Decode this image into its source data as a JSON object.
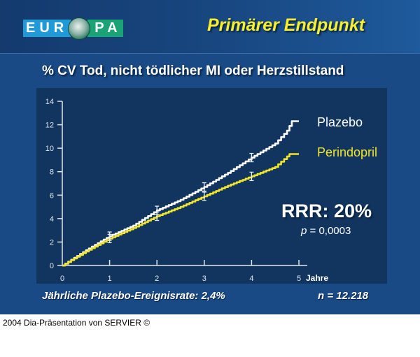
{
  "header": {
    "logo": {
      "text_left": "EUR",
      "text_right": "PA",
      "icon": "globe-heart-icon",
      "color_left": "#1f9ad6",
      "color_right": "#1aa374"
    },
    "title": "Primärer Endpunkt"
  },
  "subtitle": "% CV Tod, nicht tödlicher MI oder Herzstillstand",
  "annotation": {
    "rrr": "RRR: 20%",
    "p_label": "p",
    "p_value": " = 0,0003"
  },
  "bottom": {
    "event_rate": "Jährliche Plazebo-Ereignisrate: 2,4%",
    "n": "n = 12.218"
  },
  "footer": "2004 Dia-Präsentation von SERVIER ©",
  "colors": {
    "background": "#1a4a85",
    "panel": "#12355f",
    "title_yellow": "#f7ee2c",
    "plazebo": "#ffffff",
    "perindopril": "#f2e62a"
  },
  "chart_data": {
    "type": "line",
    "title": "% CV Tod, nicht tödlicher MI oder Herzstillstand",
    "xlabel": "Jahre",
    "ylabel": "%",
    "xlim": [
      0,
      5
    ],
    "ylim": [
      0,
      14
    ],
    "x_ticks": [
      "0",
      "1",
      "2",
      "3",
      "4",
      "5"
    ],
    "y_ticks": [
      "0",
      "2",
      "4",
      "6",
      "8",
      "10",
      "12",
      "14"
    ],
    "grid": false,
    "legend_position": "right, inline labels",
    "series": [
      {
        "name": "Plazebo",
        "color": "#ffffff",
        "x": [
          0,
          0.5,
          1,
          1.5,
          2,
          2.5,
          3,
          3.5,
          4,
          4.5,
          4.75,
          4.85,
          5.0
        ],
        "values": [
          0,
          1.3,
          2.5,
          3.4,
          4.7,
          5.6,
          6.7,
          7.9,
          9.2,
          10.4,
          11.5,
          12.3,
          12.3
        ],
        "error_bars_at": [
          1,
          2,
          3,
          4
        ]
      },
      {
        "name": "Perindopril",
        "color": "#f2e62a",
        "x": [
          0,
          0.5,
          1,
          1.5,
          2,
          2.5,
          3,
          3.5,
          4,
          4.5,
          4.75,
          4.8,
          5.0
        ],
        "values": [
          0,
          1.2,
          2.3,
          3.2,
          4.2,
          5.0,
          5.9,
          6.8,
          7.6,
          8.4,
          9.3,
          9.5,
          9.5
        ],
        "error_bars_at": [
          1,
          2,
          3,
          4
        ]
      }
    ],
    "annotations": [
      "RRR: 20%",
      "p = 0,0003"
    ]
  }
}
